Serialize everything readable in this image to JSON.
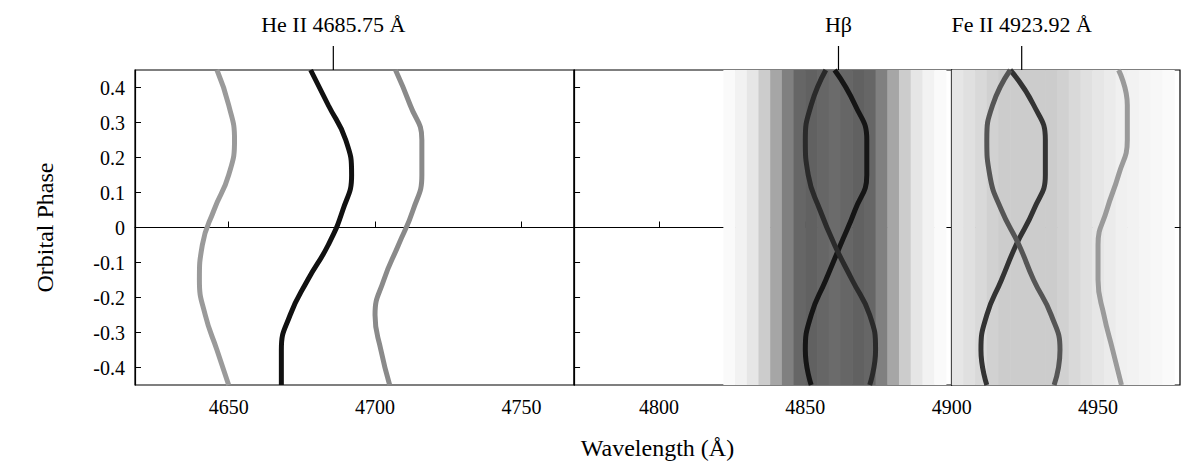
{
  "chart_data": [
    {
      "type": "line",
      "ylabel": "Orbital Phase",
      "xlim": [
        4618,
        4768
      ],
      "xticks": [
        4650,
        4700,
        4750
      ],
      "ylim": [
        -0.45,
        0.45
      ],
      "yticks": [
        -0.4,
        -0.3,
        -0.2,
        -0.1,
        0,
        0.1,
        0.2,
        0.3,
        0.4
      ],
      "annotations": [
        {
          "text": "He II 4685.75 Å",
          "x": 4685.75
        }
      ],
      "series": [
        {
          "color": "#111111",
          "y": [
            -0.45,
            -0.35,
            -0.25,
            -0.15,
            -0.05,
            0.05,
            0.15,
            0.25,
            0.35,
            0.45
          ],
          "x": [
            4668,
            4668,
            4671,
            4677,
            4684,
            4689,
            4692,
            4690,
            4684,
            4678
          ]
        },
        {
          "color": "#8a8a8a",
          "y": [
            -0.45,
            -0.35,
            -0.25,
            -0.15,
            -0.05,
            0.05,
            0.15,
            0.25,
            0.35,
            0.45
          ],
          "x": [
            4705,
            4702,
            4700,
            4703,
            4708,
            4713,
            4716,
            4716,
            4712,
            4707
          ]
        },
        {
          "color": "#9a9a9a",
          "y": [
            -0.45,
            -0.35,
            -0.25,
            -0.15,
            -0.05,
            0.05,
            0.15,
            0.25,
            0.35,
            0.45
          ],
          "x": [
            4650,
            4646,
            4642,
            4640,
            4641,
            4645,
            4650,
            4652,
            4650,
            4646
          ]
        }
      ]
    },
    {
      "type": "line",
      "xlabel": "Wavelength (Å)",
      "tick_labels": "x",
      "xlim": [
        4771,
        4900
      ],
      "xticks": [
        4800,
        4850,
        4900
      ],
      "ylim": [
        -0.45,
        0.45
      ],
      "yticks": [
        -0.4,
        -0.3,
        -0.2,
        -0.1,
        0,
        0.1,
        0.2,
        0.3,
        0.4
      ],
      "annotations": [
        {
          "text": "Hβ",
          "x": 4861.33
        }
      ],
      "profile": {
        "bins": [
          4822,
          4826,
          4830,
          4834,
          4838,
          4842,
          4846,
          4850,
          4854,
          4858,
          4862,
          4866,
          4870,
          4874,
          4878,
          4882,
          4886,
          4890,
          4894,
          4898
        ],
        "values": [
          0.02,
          0.05,
          0.1,
          0.2,
          0.35,
          0.5,
          0.6,
          0.62,
          0.6,
          0.58,
          0.6,
          0.62,
          0.6,
          0.5,
          0.35,
          0.2,
          0.1,
          0.05,
          0.02
        ]
      },
      "series": [
        {
          "color": "#151515",
          "y": [
            -0.45,
            -0.35,
            -0.25,
            -0.15,
            -0.05,
            0.05,
            0.15,
            0.25,
            0.35,
            0.45
          ],
          "x": [
            4852,
            4850,
            4852,
            4857,
            4862,
            4867,
            4871,
            4871,
            4867,
            4860
          ]
        },
        {
          "color": "#2a2a2a",
          "y": [
            -0.45,
            -0.35,
            -0.25,
            -0.15,
            -0.05,
            0.05,
            0.15,
            0.25,
            0.35,
            0.45
          ],
          "x": [
            4872,
            4874,
            4872,
            4866,
            4860,
            4855,
            4851,
            4850,
            4852,
            4857
          ]
        }
      ]
    },
    {
      "type": "line",
      "tick_labels": "x",
      "xlim": [
        4900,
        4978
      ],
      "xticks": [
        4950
      ],
      "ylim": [
        -0.45,
        0.45
      ],
      "yticks": [
        -0.4,
        -0.3,
        -0.2,
        -0.1,
        0,
        0.1,
        0.2,
        0.3,
        0.4
      ],
      "annotations": [
        {
          "text": "Fe II 4923.92 Å",
          "x": 4923.92
        }
      ],
      "profile": {
        "bins": [
          4900,
          4904,
          4908,
          4912,
          4916,
          4920,
          4924,
          4928,
          4932,
          4936,
          4940,
          4944,
          4948,
          4952,
          4956,
          4960,
          4964,
          4968,
          4972,
          4976
        ],
        "values": [
          0.1,
          0.12,
          0.15,
          0.18,
          0.2,
          0.2,
          0.2,
          0.2,
          0.2,
          0.18,
          0.15,
          0.12,
          0.1,
          0.08,
          0.06,
          0.05,
          0.04,
          0.03,
          0.02
        ]
      },
      "series": [
        {
          "color": "#333333",
          "y": [
            -0.45,
            -0.35,
            -0.25,
            -0.15,
            -0.05,
            0.05,
            0.15,
            0.25,
            0.35,
            0.45
          ],
          "x": [
            4912,
            4910,
            4912,
            4917,
            4922,
            4928,
            4932,
            4932,
            4928,
            4920
          ]
        },
        {
          "color": "#555555",
          "y": [
            -0.45,
            -0.35,
            -0.25,
            -0.15,
            -0.05,
            0.05,
            0.15,
            0.25,
            0.35,
            0.45
          ],
          "x": [
            4935,
            4937,
            4934,
            4928,
            4923,
            4917,
            4913,
            4912,
            4914,
            4920
          ]
        },
        {
          "color": "#9a9a9a",
          "y": [
            -0.45,
            -0.35,
            -0.25,
            -0.15,
            -0.05,
            0.05,
            0.15,
            0.25,
            0.35,
            0.45
          ],
          "x": [
            4958,
            4955,
            4952,
            4950,
            4950,
            4953,
            4957,
            4960,
            4960,
            4957
          ]
        }
      ]
    }
  ]
}
